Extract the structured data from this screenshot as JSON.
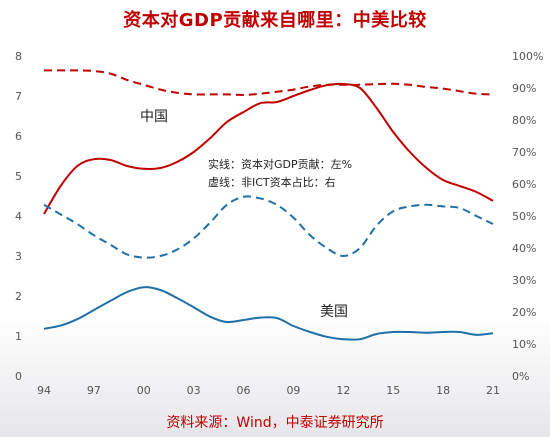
{
  "title": "资本对GDP贡献来自哪里：中美比较",
  "source": "资料来源：Wind，中泰证券研究所",
  "chart_data": {
    "type": "line",
    "x": [
      "94",
      "95",
      "96",
      "97",
      "98",
      "99",
      "00",
      "01",
      "02",
      "03",
      "04",
      "05",
      "06",
      "07",
      "08",
      "09",
      "10",
      "11",
      "12",
      "13",
      "14",
      "15",
      "16",
      "17",
      "18",
      "19",
      "20",
      "21"
    ],
    "x_tick_labels": [
      "94",
      "97",
      "00",
      "03",
      "06",
      "09",
      "12",
      "15",
      "18",
      "21"
    ],
    "y_left_ticks": [
      "0",
      "1",
      "2",
      "3",
      "4",
      "5",
      "6",
      "7",
      "8"
    ],
    "y_right_ticks": [
      "0%",
      "10%",
      "20%",
      "30%",
      "40%",
      "50%",
      "60%",
      "70%",
      "80%",
      "90%",
      "100%"
    ],
    "ylim_left": [
      0,
      8
    ],
    "ylim_right": [
      0,
      100
    ],
    "grid": false,
    "series": [
      {
        "axis": "left",
        "style": "solid",
        "color": "#c00000",
        "values": [
          4.05,
          4.75,
          5.25,
          5.42,
          5.4,
          5.25,
          5.18,
          5.2,
          5.35,
          5.6,
          5.95,
          6.35,
          6.6,
          6.82,
          6.85,
          7.0,
          7.15,
          7.27,
          7.3,
          7.2,
          6.7,
          6.1,
          5.6,
          5.2,
          4.9,
          4.75,
          4.6,
          4.38
        ]
      },
      {
        "axis": "right",
        "style": "dashed",
        "color": "#c00000",
        "values": [
          95.5,
          95.5,
          95.5,
          95.3,
          94.5,
          92.5,
          91.0,
          89.5,
          88.5,
          88.0,
          88.0,
          88.0,
          87.8,
          88.2,
          88.8,
          89.5,
          90.5,
          91.0,
          91.0,
          91.0,
          91.2,
          91.3,
          91.0,
          90.3,
          89.8,
          89.0,
          88.2,
          88.0
        ]
      },
      {
        "axis": "left",
        "style": "solid",
        "color": "#1f6fa8",
        "values": [
          1.18,
          1.26,
          1.42,
          1.65,
          1.88,
          2.1,
          2.22,
          2.15,
          1.95,
          1.72,
          1.48,
          1.35,
          1.4,
          1.46,
          1.45,
          1.25,
          1.1,
          0.98,
          0.92,
          0.92,
          1.05,
          1.1,
          1.1,
          1.08,
          1.1,
          1.1,
          1.03,
          1.07
        ]
      },
      {
        "axis": "right",
        "style": "dashed",
        "color": "#1f6fa8",
        "values": [
          53.5,
          50.5,
          47.5,
          44.0,
          41.0,
          38.0,
          37.0,
          37.5,
          39.5,
          43.0,
          48.0,
          53.5,
          56.0,
          55.5,
          53.5,
          49.5,
          44.0,
          40.0,
          37.5,
          40.0,
          47.0,
          51.5,
          53.0,
          53.5,
          53.0,
          52.5,
          50.0,
          47.5
        ]
      }
    ],
    "annotations": {
      "china": "中国",
      "usa": "美国",
      "note_line1": "实线：资本对GDP贡献：左%",
      "note_line2": "虚线：非ICT资本占比：右"
    }
  }
}
